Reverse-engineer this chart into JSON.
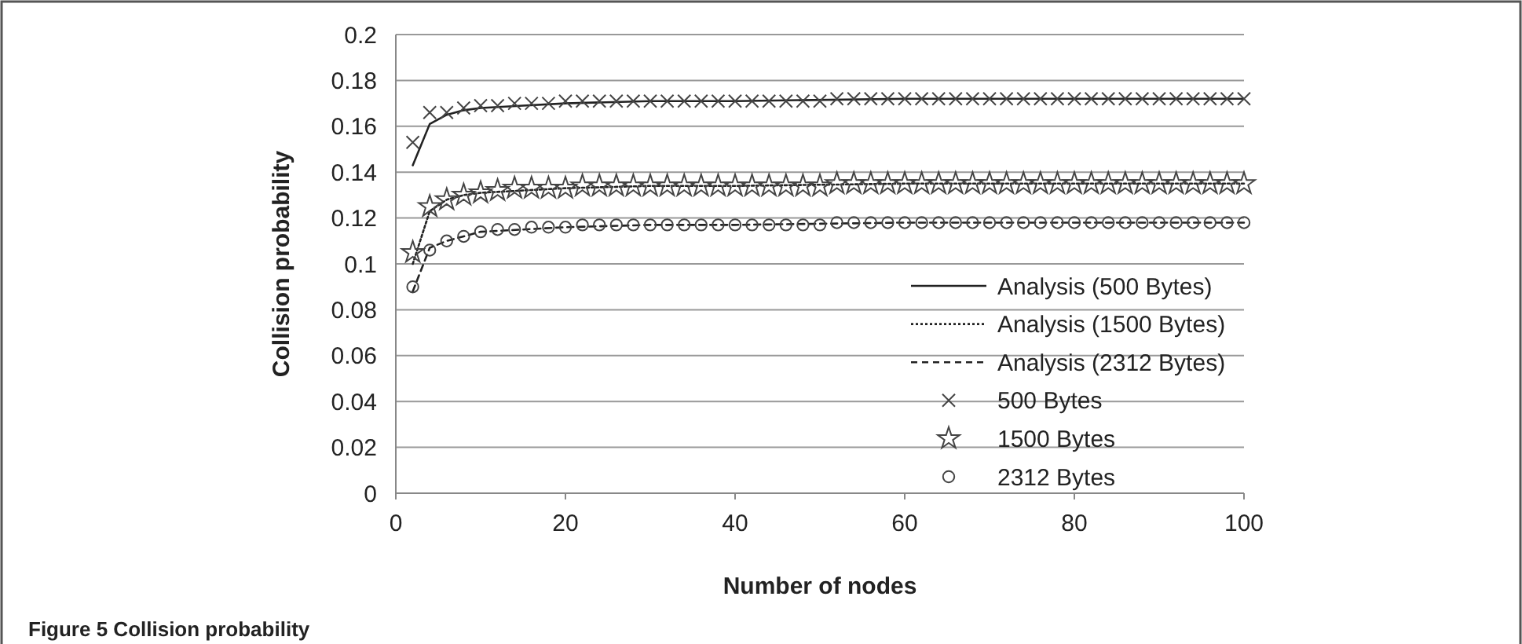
{
  "chart_data": {
    "type": "line",
    "xlabel": "Number of nodes",
    "ylabel": "Collision probability",
    "annotations": [
      "Figure 5 Collision probability"
    ],
    "xlim": [
      0,
      100
    ],
    "xticks": [
      0,
      20,
      40,
      60,
      80,
      100
    ],
    "ylim": [
      0,
      0.2
    ],
    "yticks": [
      0,
      0.02,
      0.04,
      0.06,
      0.08,
      0.1,
      0.12,
      0.14,
      0.16,
      0.18,
      0.2
    ],
    "grid": "y",
    "legend": "bottom right",
    "series": [
      {
        "name": "Analysis (500 Bytes)",
        "color": "#222222",
        "line_style": "solid",
        "marker": "none",
        "x": [
          2,
          4,
          6,
          8,
          10,
          15,
          20,
          30,
          40,
          60,
          80,
          100
        ],
        "values": [
          0.143,
          0.161,
          0.165,
          0.167,
          0.168,
          0.169,
          0.17,
          0.171,
          0.171,
          0.172,
          0.172,
          0.172
        ]
      },
      {
        "name": "Analysis (1500 Bytes)",
        "color": "#222222",
        "line_style": "dotted",
        "marker": "none",
        "x": [
          2,
          4,
          6,
          8,
          10,
          15,
          20,
          30,
          40,
          60,
          80,
          100
        ],
        "values": [
          0.1,
          0.123,
          0.128,
          0.13,
          0.131,
          0.132,
          0.133,
          0.134,
          0.134,
          0.135,
          0.135,
          0.135
        ]
      },
      {
        "name": "Analysis (2312 Bytes)",
        "color": "#222222",
        "line_style": "dashed",
        "marker": "none",
        "x": [
          2,
          4,
          6,
          8,
          10,
          15,
          20,
          30,
          40,
          60,
          80,
          100
        ],
        "values": [
          0.088,
          0.107,
          0.11,
          0.112,
          0.114,
          0.115,
          0.116,
          0.117,
          0.117,
          0.118,
          0.118,
          0.118
        ]
      },
      {
        "name": "500 Bytes",
        "type": "scatter",
        "color": "#444444",
        "marker": "cross",
        "x": [
          2,
          4,
          6,
          8,
          10,
          12,
          14,
          16,
          18,
          20,
          22,
          24,
          26,
          28,
          30,
          32,
          34,
          36,
          38,
          40,
          42,
          44,
          46,
          48,
          50,
          52,
          54,
          56,
          58,
          60,
          62,
          64,
          66,
          68,
          70,
          72,
          74,
          76,
          78,
          80,
          82,
          84,
          86,
          88,
          90,
          92,
          94,
          96,
          98,
          100
        ],
        "values": [
          0.153,
          0.166,
          0.166,
          0.168,
          0.169,
          0.169,
          0.17,
          0.17,
          0.17,
          0.171,
          0.171,
          0.171,
          0.171,
          0.171,
          0.171,
          0.171,
          0.171,
          0.171,
          0.171,
          0.171,
          0.171,
          0.171,
          0.171,
          0.171,
          0.171,
          0.172,
          0.172,
          0.172,
          0.172,
          0.172,
          0.172,
          0.172,
          0.172,
          0.172,
          0.172,
          0.172,
          0.172,
          0.172,
          0.172,
          0.172,
          0.172,
          0.172,
          0.172,
          0.172,
          0.172,
          0.172,
          0.172,
          0.172,
          0.172,
          0.172
        ]
      },
      {
        "name": "1500 Bytes",
        "type": "scatter",
        "color": "#444444",
        "marker": "star",
        "x": [
          2,
          4,
          6,
          8,
          10,
          12,
          14,
          16,
          18,
          20,
          22,
          24,
          26,
          28,
          30,
          32,
          34,
          36,
          38,
          40,
          42,
          44,
          46,
          48,
          50,
          52,
          54,
          56,
          58,
          60,
          62,
          64,
          66,
          68,
          70,
          72,
          74,
          76,
          78,
          80,
          82,
          84,
          86,
          88,
          90,
          92,
          94,
          96,
          98,
          100
        ],
        "values": [
          0.105,
          0.125,
          0.128,
          0.13,
          0.131,
          0.132,
          0.133,
          0.133,
          0.133,
          0.133,
          0.134,
          0.134,
          0.134,
          0.134,
          0.134,
          0.134,
          0.134,
          0.134,
          0.134,
          0.134,
          0.134,
          0.134,
          0.134,
          0.134,
          0.134,
          0.135,
          0.135,
          0.135,
          0.135,
          0.135,
          0.135,
          0.135,
          0.135,
          0.135,
          0.135,
          0.135,
          0.135,
          0.135,
          0.135,
          0.135,
          0.135,
          0.135,
          0.135,
          0.135,
          0.135,
          0.135,
          0.135,
          0.135,
          0.135,
          0.135
        ]
      },
      {
        "name": "2312 Bytes",
        "type": "scatter",
        "color": "#444444",
        "marker": "circle",
        "x": [
          2,
          4,
          6,
          8,
          10,
          12,
          14,
          16,
          18,
          20,
          22,
          24,
          26,
          28,
          30,
          32,
          34,
          36,
          38,
          40,
          42,
          44,
          46,
          48,
          50,
          52,
          54,
          56,
          58,
          60,
          62,
          64,
          66,
          68,
          70,
          72,
          74,
          76,
          78,
          80,
          82,
          84,
          86,
          88,
          90,
          92,
          94,
          96,
          98,
          100
        ],
        "values": [
          0.09,
          0.106,
          0.11,
          0.112,
          0.114,
          0.115,
          0.115,
          0.116,
          0.116,
          0.116,
          0.117,
          0.117,
          0.117,
          0.117,
          0.117,
          0.117,
          0.117,
          0.117,
          0.117,
          0.117,
          0.117,
          0.117,
          0.117,
          0.117,
          0.117,
          0.118,
          0.118,
          0.118,
          0.118,
          0.118,
          0.118,
          0.118,
          0.118,
          0.118,
          0.118,
          0.118,
          0.118,
          0.118,
          0.118,
          0.118,
          0.118,
          0.118,
          0.118,
          0.118,
          0.118,
          0.118,
          0.118,
          0.118,
          0.118,
          0.118
        ]
      }
    ]
  }
}
